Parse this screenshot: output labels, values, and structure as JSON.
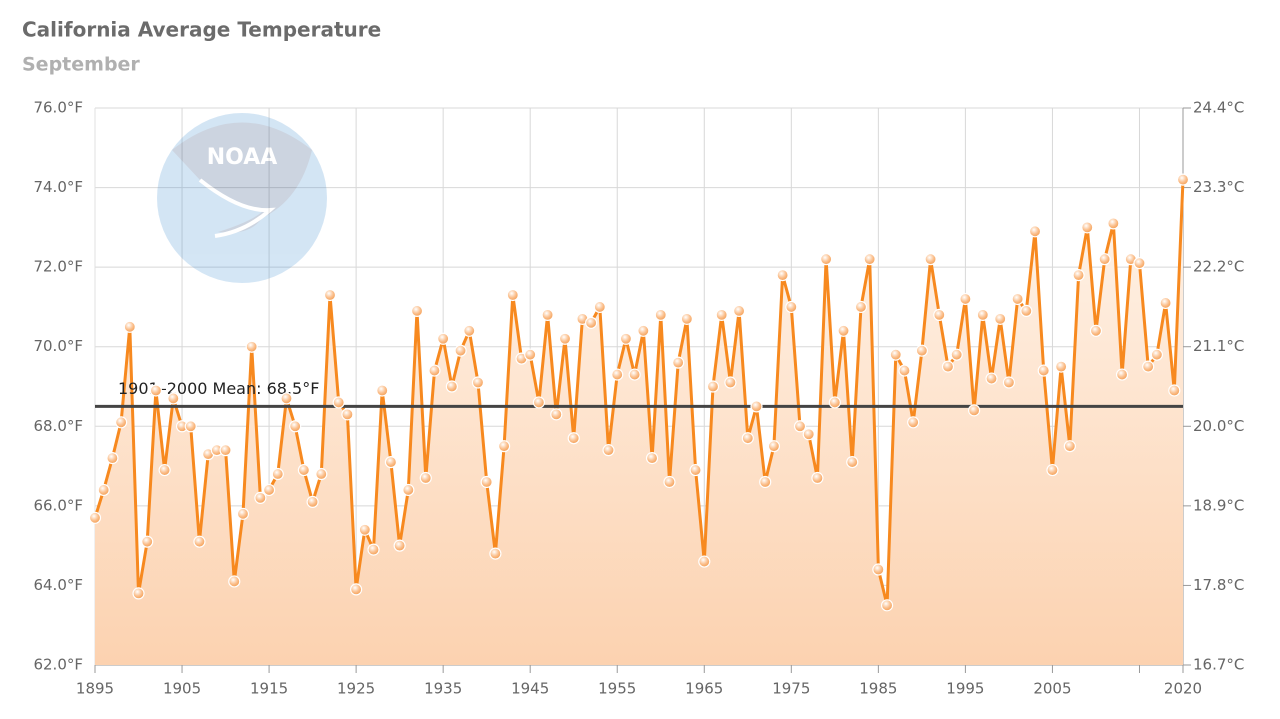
{
  "chart_data": {
    "type": "line",
    "title": "California Average Temperature",
    "subtitle": "September",
    "logo_text": "NOAA",
    "x": [
      1895,
      1896,
      1897,
      1898,
      1899,
      1900,
      1901,
      1902,
      1903,
      1904,
      1905,
      1906,
      1907,
      1908,
      1909,
      1910,
      1911,
      1912,
      1913,
      1914,
      1915,
      1916,
      1917,
      1918,
      1919,
      1920,
      1921,
      1922,
      1923,
      1924,
      1925,
      1926,
      1927,
      1928,
      1929,
      1930,
      1931,
      1932,
      1933,
      1934,
      1935,
      1936,
      1937,
      1938,
      1939,
      1940,
      1941,
      1942,
      1943,
      1944,
      1945,
      1946,
      1947,
      1948,
      1949,
      1950,
      1951,
      1952,
      1953,
      1954,
      1955,
      1956,
      1957,
      1958,
      1959,
      1960,
      1961,
      1962,
      1963,
      1964,
      1965,
      1966,
      1967,
      1968,
      1969,
      1970,
      1971,
      1972,
      1973,
      1974,
      1975,
      1976,
      1977,
      1978,
      1979,
      1980,
      1981,
      1982,
      1983,
      1984,
      1985,
      1986,
      1987,
      1988,
      1989,
      1990,
      1991,
      1992,
      1993,
      1994,
      1995,
      1996,
      1997,
      1998,
      1999,
      2000,
      2001,
      2002,
      2003,
      2004,
      2005,
      2006,
      2007,
      2008,
      2009,
      2010,
      2011,
      2012,
      2013,
      2014,
      2015,
      2016,
      2017,
      2018,
      2019,
      2020
    ],
    "values": [
      65.7,
      66.4,
      67.2,
      68.1,
      70.5,
      63.8,
      65.1,
      68.9,
      66.9,
      68.7,
      68.0,
      68.0,
      65.1,
      67.3,
      67.4,
      67.4,
      64.1,
      65.8,
      70.0,
      66.2,
      66.4,
      66.8,
      68.7,
      68.0,
      66.9,
      66.1,
      66.8,
      71.3,
      68.6,
      68.3,
      63.9,
      65.4,
      64.9,
      68.9,
      67.1,
      65.0,
      66.4,
      70.9,
      66.7,
      69.4,
      70.2,
      69.0,
      69.9,
      70.4,
      69.1,
      66.6,
      64.8,
      67.5,
      71.3,
      69.7,
      69.8,
      68.6,
      70.8,
      68.3,
      70.2,
      67.7,
      70.7,
      70.6,
      71.0,
      67.4,
      69.3,
      70.2,
      69.3,
      70.4,
      67.2,
      70.8,
      66.6,
      69.6,
      70.7,
      66.9,
      64.6,
      69.0,
      70.8,
      69.1,
      70.9,
      67.7,
      68.5,
      66.6,
      67.5,
      71.8,
      71.0,
      68.0,
      67.8,
      66.7,
      72.2,
      68.6,
      70.4,
      67.1,
      71.0,
      72.2,
      64.4,
      63.5,
      69.8,
      69.4,
      68.1,
      69.9,
      72.2,
      70.8,
      69.5,
      69.8,
      71.2,
      68.4,
      70.8,
      69.2,
      70.7,
      69.1,
      71.2,
      70.9,
      72.9,
      69.4,
      66.9,
      69.5,
      67.5,
      71.8,
      73.0,
      70.4,
      72.2,
      73.1,
      69.3,
      72.2,
      72.1,
      69.5,
      69.8,
      71.1,
      68.9,
      74.2
    ],
    "color": "#f7891f",
    "mean": {
      "value": 68.5,
      "label": "1901–2000 Mean: 68.5°F"
    },
    "xlim": [
      1895,
      2020
    ],
    "xticks": [
      1895,
      1905,
      1915,
      1925,
      1935,
      1945,
      1955,
      1965,
      1975,
      1985,
      1995,
      2005,
      {
        "value": 2015,
        "label": null
      },
      2020
    ],
    "ylim": [
      62,
      76
    ],
    "yticks": [
      {
        "value": 62,
        "label": "62.0°F"
      },
      {
        "value": 64,
        "label": "64.0°F"
      },
      {
        "value": 66,
        "label": "66.0°F"
      },
      {
        "value": 68,
        "label": "68.0°F"
      },
      {
        "value": 70,
        "label": "70.0°F"
      },
      {
        "value": 72,
        "label": "72.0°F"
      },
      {
        "value": 74,
        "label": "74.0°F"
      },
      {
        "value": 76,
        "label": "76.0°F"
      }
    ],
    "y2lim": [
      16.667,
      24.444
    ],
    "y2ticks": [
      {
        "value": 16.667,
        "label": "16.7°C"
      },
      {
        "value": 17.778,
        "label": "17.8°C"
      },
      {
        "value": 18.889,
        "label": "18.9°C"
      },
      {
        "value": 20.0,
        "label": "20.0°C"
      },
      {
        "value": 21.111,
        "label": "21.1°C"
      },
      {
        "value": 22.222,
        "label": "22.2°C"
      },
      {
        "value": 23.333,
        "label": "23.3°C"
      },
      {
        "value": 24.444,
        "label": "24.4°C"
      }
    ],
    "grid": true
  }
}
